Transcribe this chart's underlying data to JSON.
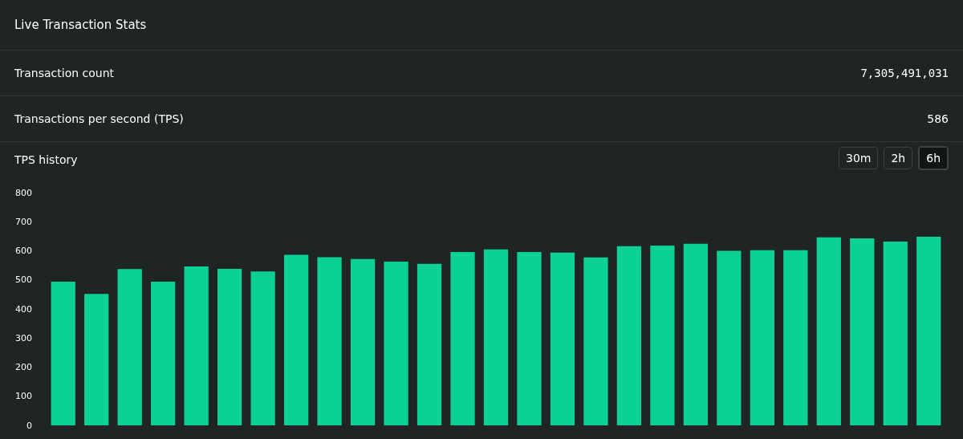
{
  "chart_data": {
    "type": "bar",
    "title": "Live Transaction Stats",
    "subtitle": "TPS history",
    "annotations": [
      "Transaction count",
      "7,305,491,031",
      "Transactions per second (TPS)",
      "586",
      "30m",
      "2h",
      "6h"
    ],
    "categories": [
      null,
      null,
      null,
      null,
      null,
      null,
      null,
      null,
      null,
      null,
      null,
      null,
      null,
      null,
      null,
      null,
      null,
      null,
      null,
      null,
      null,
      null,
      null,
      null,
      null,
      null,
      null
    ],
    "values": [
      494,
      452,
      537,
      494,
      546,
      538,
      529,
      586,
      578,
      572,
      563,
      555,
      596,
      605,
      596,
      594,
      577,
      616,
      618,
      624,
      600,
      602,
      602,
      646,
      643,
      632,
      648
    ],
    "color": "#0bd192",
    "ylim": [
      0,
      800
    ],
    "yticks": [
      0,
      100,
      200,
      300,
      400,
      500,
      600,
      700,
      800
    ],
    "grid": false,
    "tick_labels": "y"
  }
}
